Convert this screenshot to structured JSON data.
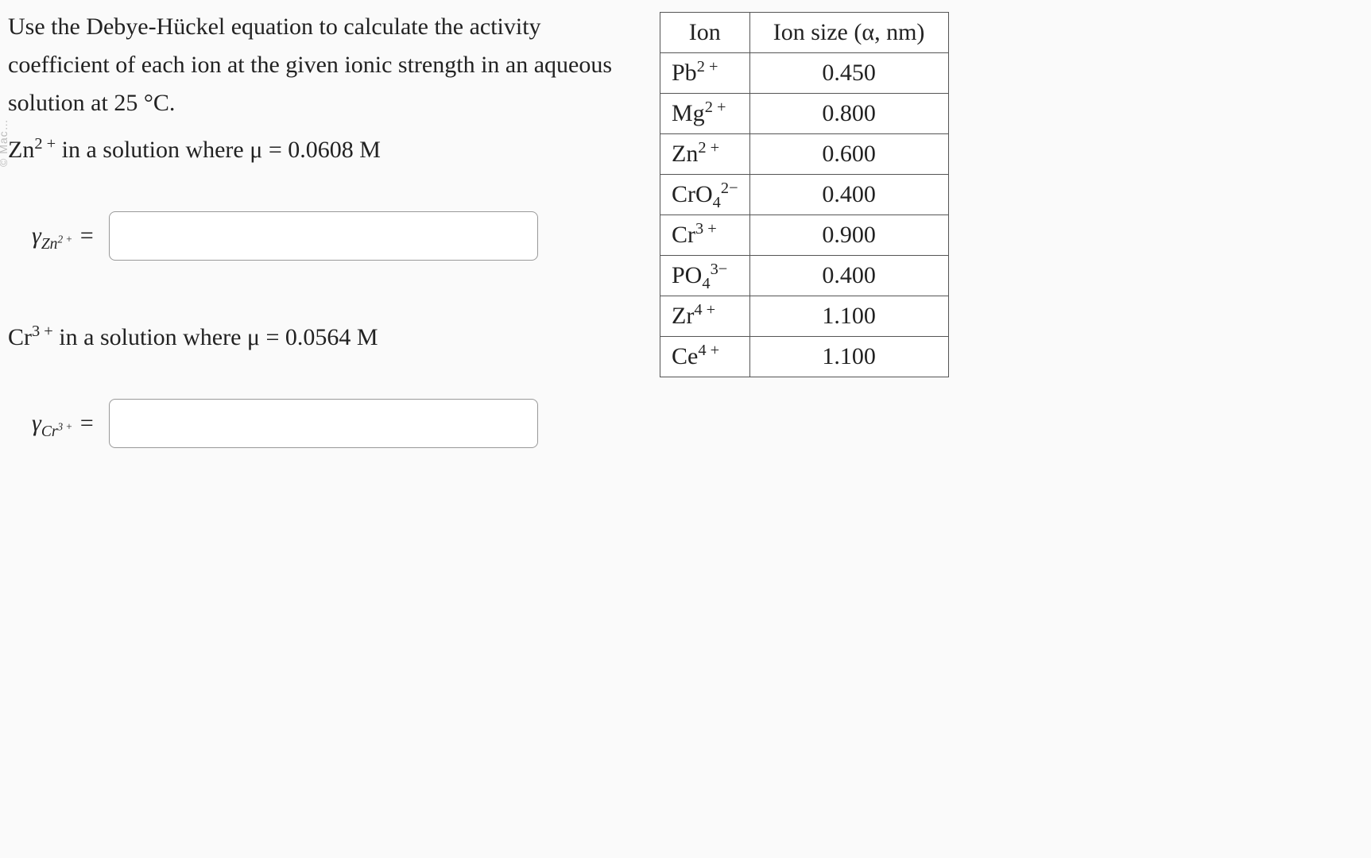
{
  "questionPrompt": "Use the Debye-Hückel equation to calculate the activity coefficient of each ion at the given ionic strength in an aqueous solution at 25 °C.",
  "partA": {
    "ionHtml": "Zn<sup>2 +</sup>",
    "solutionText": "in a solution where μ = 0.0608 M",
    "labelHtml": "γ<sub style='font-size:0.65em'>Zn<sup>2 +</sup></sub> =",
    "inputValue": ""
  },
  "partB": {
    "ionHtml": "Cr<sup>3 +</sup>",
    "solutionText": "in a solution where μ = 0.0564 M",
    "labelHtml": "γ<sub style='font-size:0.65em'>Cr<sup>3 +</sup></sub> =",
    "inputValue": ""
  },
  "table": {
    "headers": [
      "Ion",
      "Ion size (α, nm)"
    ],
    "rows": [
      {
        "ionHtml": "Pb<sup>2 +</sup>",
        "size": "0.450"
      },
      {
        "ionHtml": "Mg<sup>2 +</sup>",
        "size": "0.800"
      },
      {
        "ionHtml": "Zn<sup>2 +</sup>",
        "size": "0.600"
      },
      {
        "ionHtml": "CrO<sub>4</sub><sup>2−</sup>",
        "size": "0.400"
      },
      {
        "ionHtml": "Cr<sup>3 +</sup>",
        "size": "0.900"
      },
      {
        "ionHtml": "PO<sub>4</sub><sup>3−</sup>",
        "size": "0.400"
      },
      {
        "ionHtml": "Zr<sup>4 +</sup>",
        "size": "1.100"
      },
      {
        "ionHtml": "Ce<sup>4 +</sup>",
        "size": "1.100"
      }
    ],
    "border_color": "#555555",
    "header_bg": "#ffffff",
    "cell_bg": "#ffffff",
    "fontsize": 30
  },
  "colors": {
    "page_bg": "#fafafa",
    "text": "#222222",
    "input_border": "#999999",
    "input_bg": "#ffffff"
  },
  "watermark": "© Mac…"
}
